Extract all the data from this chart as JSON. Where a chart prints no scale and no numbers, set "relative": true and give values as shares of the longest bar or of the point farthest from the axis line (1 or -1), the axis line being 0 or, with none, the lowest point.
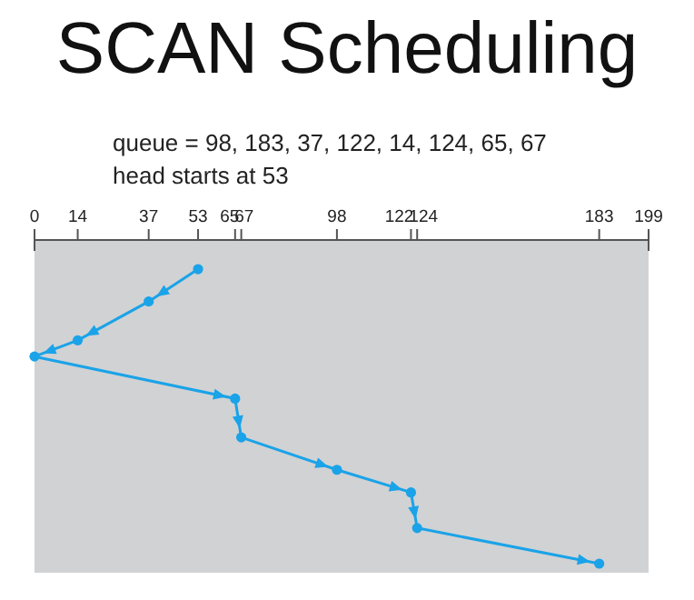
{
  "chart_data": {
    "type": "line",
    "title": "SCAN Scheduling",
    "subtitle": "queue = 98, 183, 37, 122, 14, 124, 65, 67",
    "annotations": [
      "head starts at 53"
    ],
    "relative": true,
    "xlim": [
      0,
      199
    ],
    "xticks": [
      0,
      14,
      37,
      53,
      65,
      67,
      98,
      122,
      124,
      183,
      199
    ],
    "series": [
      {
        "color": "#1aa3e8",
        "x": [
          53,
          37,
          14,
          0,
          65,
          67,
          98,
          122,
          124,
          183
        ],
        "values": [
          -0.09,
          -0.19,
          -0.31,
          -0.36,
          -0.49,
          -0.61,
          -0.71,
          -0.78,
          -0.89,
          -1
        ]
      }
    ],
    "marker": "circle",
    "line_style": "solid",
    "grid": false,
    "legend": false
  }
}
